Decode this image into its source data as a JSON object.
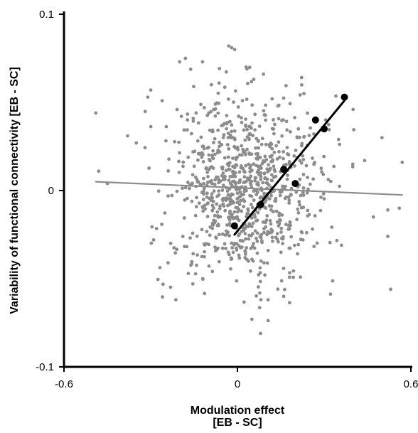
{
  "chart_data": {
    "type": "scatter",
    "title": "",
    "xlabel_lines": [
      "Modulation effect",
      "[EB - SC]"
    ],
    "ylabel": "Variability of functional connectivity [EB - SC]",
    "xlim": [
      -0.6,
      0.6
    ],
    "ylim": [
      -0.1,
      0.1
    ],
    "x_ticks": [
      {
        "value": -0.6,
        "label": "-0.6"
      },
      {
        "value": 0,
        "label": "0"
      },
      {
        "value": 0.6,
        "label": "0.6"
      }
    ],
    "y_ticks": [
      {
        "value": -0.1,
        "label": "-0.1"
      },
      {
        "value": 0,
        "label": "0"
      },
      {
        "value": 0.1,
        "label": "0.1"
      }
    ],
    "grid": false,
    "series": [
      {
        "marker": "small-dot",
        "color": "#8c8c8c",
        "cloud": {
          "count": 900,
          "x_center": 0.02,
          "x_sd": 0.13,
          "y_center": 0.001,
          "y_sd": 0.026
        },
        "points": [
          {
            "x": -0.49,
            "y": 0.044
          },
          {
            "x": -0.48,
            "y": 0.011
          },
          {
            "x": -0.45,
            "y": 0.004
          },
          {
            "x": -0.38,
            "y": 0.031
          },
          {
            "x": -0.35,
            "y": 0.027
          },
          {
            "x": -0.31,
            "y": 0.053
          },
          {
            "x": -0.3,
            "y": 0.057
          },
          {
            "x": -0.29,
            "y": -0.028
          },
          {
            "x": -0.24,
            "y": -0.041
          },
          {
            "x": -0.2,
            "y": 0.073
          },
          {
            "x": -0.18,
            "y": 0.075
          },
          {
            "x": -0.17,
            "y": -0.047
          },
          {
            "x": -0.12,
            "y": -0.05
          },
          {
            "x": -0.03,
            "y": 0.082
          },
          {
            "x": -0.02,
            "y": 0.081
          },
          {
            "x": 0.03,
            "y": 0.07
          },
          {
            "x": 0.05,
            "y": -0.073
          },
          {
            "x": 0.08,
            "y": -0.081
          },
          {
            "x": 0.09,
            "y": 0.066
          },
          {
            "x": 0.16,
            "y": -0.06
          },
          {
            "x": 0.23,
            "y": 0.055
          },
          {
            "x": 0.35,
            "y": 0.029
          },
          {
            "x": 0.36,
            "y": -0.031
          },
          {
            "x": 0.4,
            "y": 0.046
          },
          {
            "x": 0.44,
            "y": 0.017
          },
          {
            "x": 0.47,
            "y": -0.015
          },
          {
            "x": 0.5,
            "y": 0.03
          },
          {
            "x": 0.52,
            "y": -0.011
          },
          {
            "x": 0.52,
            "y": -0.026
          },
          {
            "x": 0.53,
            "y": -0.056
          },
          {
            "x": 0.56,
            "y": -0.01
          },
          {
            "x": 0.57,
            "y": 0.016
          },
          {
            "x": 0.12,
            "y": 0.052
          },
          {
            "x": 0.14,
            "y": 0.048
          },
          {
            "x": -0.09,
            "y": 0.06
          }
        ]
      },
      {
        "marker": "large-dot",
        "color": "#000000",
        "points": [
          {
            "x": -0.01,
            "y": -0.02
          },
          {
            "x": 0.08,
            "y": -0.008
          },
          {
            "x": 0.16,
            "y": 0.012
          },
          {
            "x": 0.2,
            "y": 0.004
          },
          {
            "x": 0.27,
            "y": 0.04
          },
          {
            "x": 0.3,
            "y": 0.035
          },
          {
            "x": 0.37,
            "y": 0.053
          }
        ]
      }
    ],
    "fit_lines": [
      {
        "color": "#8c8c8c",
        "x": [
          -0.49,
          0.57
        ],
        "y": [
          0.005,
          -0.0025
        ]
      },
      {
        "color": "#000000",
        "x": [
          -0.01,
          0.37
        ],
        "y": [
          -0.025,
          0.051
        ]
      }
    ]
  }
}
